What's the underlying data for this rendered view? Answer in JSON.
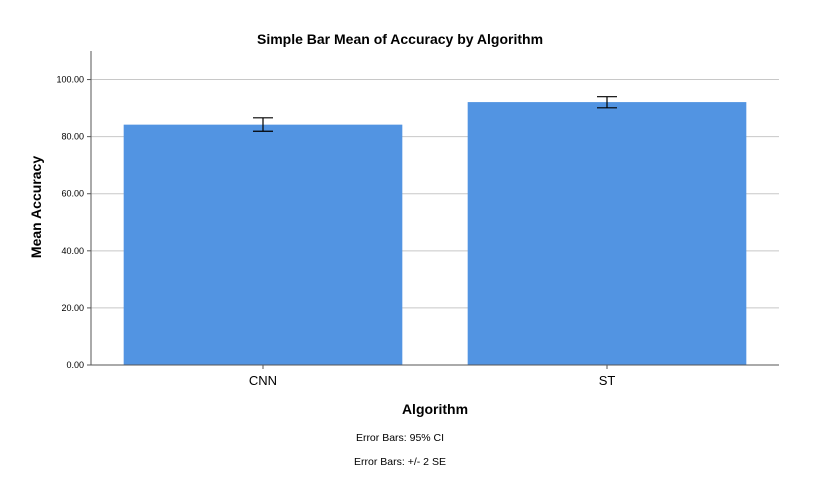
{
  "chart_data": {
    "type": "bar",
    "title": "Simple Bar Mean of Accuracy by Algorithm",
    "xlabel": "Algorithm",
    "ylabel": "Mean Accuracy",
    "categories": [
      "CNN",
      "ST"
    ],
    "values": [
      84.2,
      92.1
    ],
    "error_bars": [
      {
        "low": 81.9,
        "high": 86.6
      },
      {
        "low": 90.1,
        "high": 94.0
      }
    ],
    "ylim": [
      0,
      110
    ],
    "yticks": [
      "0.00",
      "20.00",
      "40.00",
      "60.00",
      "80.00",
      "100.00"
    ],
    "ytick_values": [
      0,
      20,
      40,
      60,
      80,
      100
    ],
    "grid": true,
    "legend": "none",
    "footnotes": [
      "Error Bars: 95% CI",
      "Error Bars: +/- 2 SE"
    ]
  },
  "colors": {
    "bar": "#5294e2",
    "grid": "#c8c8c8",
    "axis": "#555555",
    "error_bar": "#000000"
  }
}
